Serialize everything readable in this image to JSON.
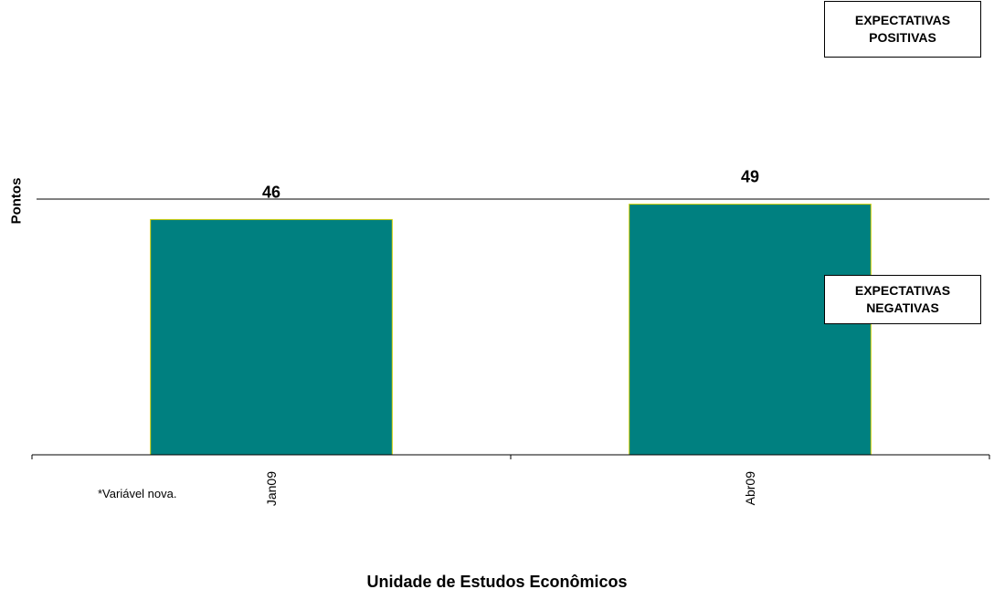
{
  "chart_data": {
    "type": "bar",
    "categories": [
      "Jan09",
      "Abr09"
    ],
    "values": [
      46,
      49
    ],
    "data_labels": [
      "46",
      "49"
    ],
    "reference_line": 50,
    "ylim": [
      0,
      50
    ],
    "xlabel": "",
    "ylabel": "Pontos",
    "bar_color": "#008080",
    "bar_edge_color": "#cccc00",
    "grid": false
  },
  "annotations": {
    "positive_box": [
      "EXPECTATIVAS",
      "POSITIVAS"
    ],
    "negative_box": [
      "EXPECTATIVAS",
      "NEGATIVAS"
    ],
    "footnote": "*Variável nova."
  },
  "footer": "Unidade de Estudos Econômicos"
}
